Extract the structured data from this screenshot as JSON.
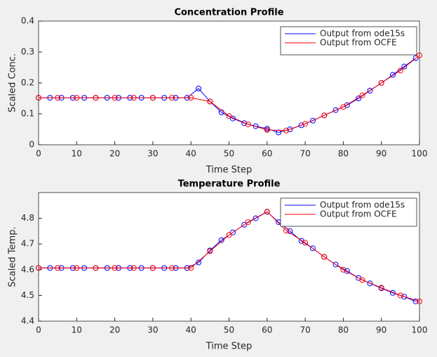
{
  "chart_data": [
    {
      "type": "line",
      "title": "Concentration Profile",
      "xlabel": "Time Step",
      "ylabel": "Scaled Conc.",
      "xlim": [
        0,
        100
      ],
      "ylim": [
        0,
        0.4
      ],
      "xticks": [
        0,
        10,
        20,
        30,
        40,
        50,
        60,
        70,
        80,
        90,
        100
      ],
      "yticks": [
        0,
        0.1,
        0.2,
        0.3,
        0.4
      ],
      "legend": "northeast",
      "marker": "circle",
      "series": [
        {
          "name": "Output from ode15s",
          "color": "#0000ff",
          "x": [
            0,
            3,
            6,
            9,
            12,
            15,
            18,
            21,
            24,
            27,
            30,
            33,
            36,
            39,
            42,
            45,
            48,
            51,
            54,
            57,
            60,
            63,
            66,
            69,
            72,
            75,
            78,
            81,
            84,
            87,
            90,
            93,
            96,
            99
          ],
          "values": [
            0.152,
            0.152,
            0.152,
            0.152,
            0.152,
            0.152,
            0.152,
            0.152,
            0.152,
            0.152,
            0.152,
            0.152,
            0.152,
            0.152,
            0.182,
            0.14,
            0.105,
            0.085,
            0.07,
            0.06,
            0.052,
            0.04,
            0.05,
            0.063,
            0.078,
            0.095,
            0.112,
            0.128,
            0.15,
            0.175,
            0.2,
            0.226,
            0.253,
            0.28
          ]
        },
        {
          "name": "Output from OCFE",
          "color": "#ff0000",
          "x": [
            0,
            5,
            10,
            15,
            20,
            25,
            30,
            35,
            40,
            45,
            50,
            55,
            60,
            65,
            70,
            75,
            80,
            85,
            90,
            95,
            100
          ],
          "values": [
            0.152,
            0.152,
            0.152,
            0.152,
            0.152,
            0.152,
            0.152,
            0.152,
            0.152,
            0.14,
            0.093,
            0.066,
            0.048,
            0.046,
            0.068,
            0.095,
            0.122,
            0.16,
            0.2,
            0.24,
            0.289
          ]
        }
      ]
    },
    {
      "type": "line",
      "title": "Temperature Profile",
      "xlabel": "Time Step",
      "ylabel": "Scaled Temp.",
      "xlim": [
        0,
        100
      ],
      "ylim": [
        4.4,
        4.9
      ],
      "xticks": [
        0,
        10,
        20,
        30,
        40,
        50,
        60,
        70,
        80,
        90,
        100
      ],
      "yticks": [
        4.4,
        4.5,
        4.6,
        4.7,
        4.8
      ],
      "legend": "northeast",
      "marker": "circle",
      "series": [
        {
          "name": "Output from ode15s",
          "color": "#0000ff",
          "x": [
            0,
            3,
            6,
            9,
            12,
            15,
            18,
            21,
            24,
            27,
            30,
            33,
            36,
            39,
            42,
            45,
            48,
            51,
            54,
            57,
            60,
            63,
            66,
            69,
            72,
            75,
            78,
            81,
            84,
            87,
            90,
            93,
            96,
            99
          ],
          "values": [
            4.607,
            4.607,
            4.607,
            4.607,
            4.607,
            4.607,
            4.607,
            4.607,
            4.607,
            4.607,
            4.607,
            4.607,
            4.607,
            4.607,
            4.628,
            4.675,
            4.715,
            4.745,
            4.775,
            4.8,
            4.825,
            4.785,
            4.75,
            4.712,
            4.683,
            4.65,
            4.62,
            4.595,
            4.568,
            4.547,
            4.528,
            4.51,
            4.495,
            4.477
          ]
        },
        {
          "name": "Output from OCFE",
          "color": "#ff0000",
          "x": [
            0,
            5,
            10,
            15,
            20,
            25,
            30,
            35,
            40,
            45,
            50,
            55,
            60,
            65,
            70,
            75,
            80,
            85,
            90,
            95,
            100
          ],
          "values": [
            4.607,
            4.607,
            4.607,
            4.607,
            4.607,
            4.607,
            4.607,
            4.607,
            4.607,
            4.672,
            4.735,
            4.785,
            4.826,
            4.752,
            4.705,
            4.65,
            4.6,
            4.56,
            4.53,
            4.5,
            4.477
          ]
        }
      ]
    }
  ]
}
